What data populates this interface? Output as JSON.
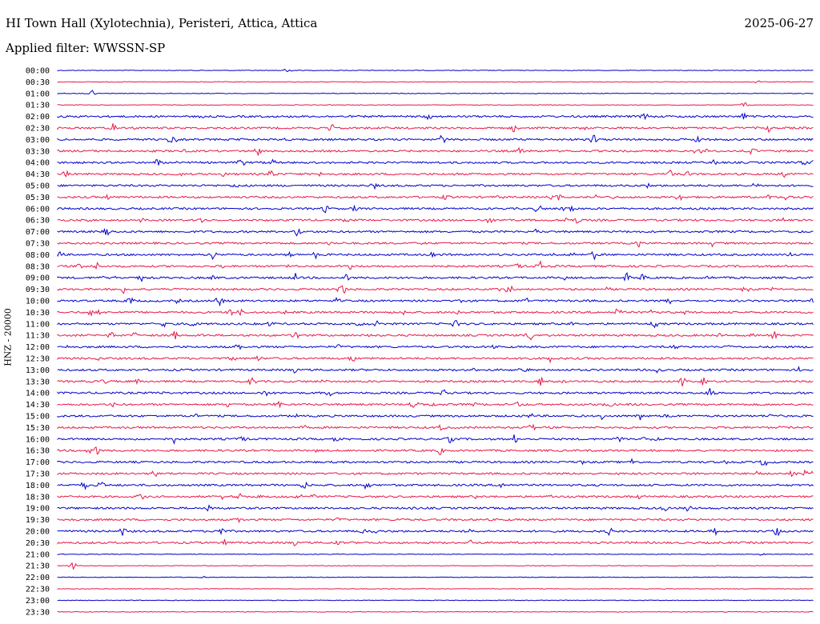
{
  "header": {
    "station": "HI Town Hall (Xylotechnia), Peristeri, Attica, Attica",
    "date": "2025-06-27",
    "filter": "Applied filter: WWSSN-SP"
  },
  "colors": {
    "even_trace": "#0000cc",
    "odd_trace": "#e8194a"
  },
  "chart_data": {
    "type": "line",
    "title": "HI Town Hall (Xylotechnia), Peristeri, Attica, Attica",
    "ylabel": "HNZ - 20000",
    "series_style": "helicorder",
    "categories": [
      "00:00",
      "00:30",
      "01:00",
      "01:30",
      "02:00",
      "02:30",
      "03:00",
      "03:30",
      "04:00",
      "04:30",
      "05:00",
      "05:30",
      "06:00",
      "06:30",
      "07:00",
      "07:30",
      "08:00",
      "08:30",
      "09:00",
      "09:30",
      "10:00",
      "10:30",
      "11:00",
      "11:30",
      "12:00",
      "12:30",
      "13:00",
      "13:30",
      "14:00",
      "14:30",
      "15:00",
      "15:30",
      "16:00",
      "16:30",
      "17:00",
      "17:30",
      "18:00",
      "18:30",
      "19:00",
      "19:30",
      "20:00",
      "20:30",
      "21:00",
      "21:30",
      "22:00",
      "22:30",
      "23:00",
      "23:30"
    ]
  }
}
